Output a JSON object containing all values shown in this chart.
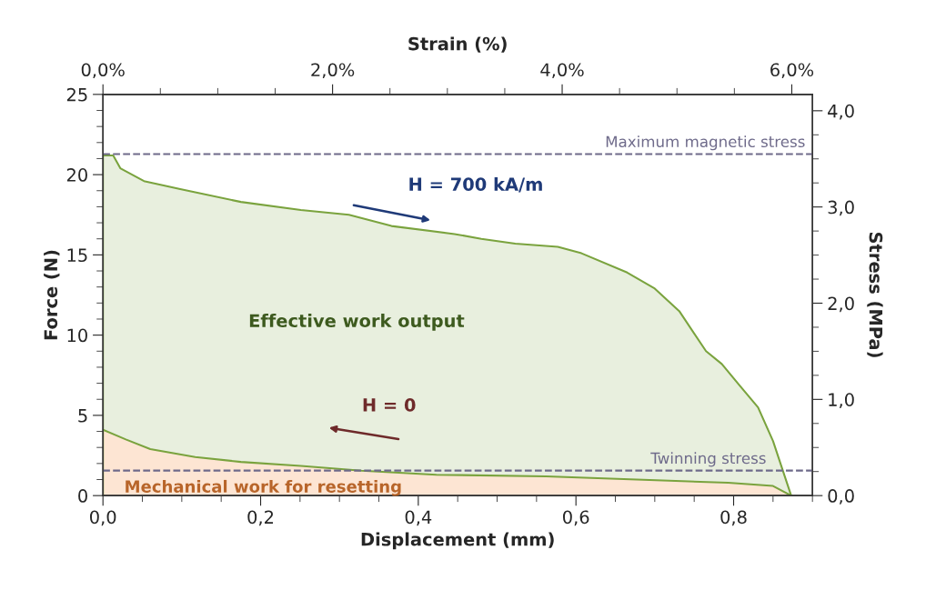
{
  "chart_data": {
    "type": "area",
    "xlabel": "Displacement (mm)",
    "ylabel": "Force (N)",
    "y2label": "Stress (MPa)",
    "x2label": "Strain (%)",
    "xlim": [
      0,
      0.9
    ],
    "xticks": [
      {
        "value": 0,
        "label": "0,0"
      },
      {
        "value": 0.2,
        "label": "0,2"
      },
      {
        "value": 0.4,
        "label": "0,4"
      },
      {
        "value": 0.6,
        "label": "0,6"
      },
      {
        "value": 0.8,
        "label": "0,8"
      }
    ],
    "ylim": [
      0,
      25
    ],
    "yticks": [
      0,
      5,
      10,
      15,
      20,
      25
    ],
    "y2lim": [
      0,
      4.17
    ],
    "y2ticks": [
      {
        "value": 0,
        "label": "0,0"
      },
      {
        "value": 1,
        "label": "1,0"
      },
      {
        "value": 2,
        "label": "2,0"
      },
      {
        "value": 3,
        "label": "3,0"
      },
      {
        "value": 4,
        "label": "4,0"
      }
    ],
    "x2lim": [
      0,
      6.18
    ],
    "x2ticks": [
      {
        "value": 0,
        "label": "0,0%"
      },
      {
        "value": 2,
        "label": "2,0%"
      },
      {
        "value": 4,
        "label": "4,0%"
      },
      {
        "value": 6,
        "label": "6,0%"
      }
    ],
    "series": [
      {
        "color": "#7aa33e",
        "x": [
          0,
          0,
          0.013,
          0.022,
          0.052,
          0.098,
          0.175,
          0.251,
          0.312,
          0.366,
          0.446,
          0.48,
          0.523,
          0.577,
          0.607,
          0.665,
          0.7,
          0.731,
          0.765,
          0.785,
          0.807,
          0.831,
          0.85,
          0.873
        ],
        "values": [
          0,
          21.2,
          21.2,
          20.4,
          19.6,
          19.1,
          18.3,
          17.8,
          17.5,
          16.8,
          16.3,
          16.0,
          15.7,
          15.5,
          15.1,
          13.9,
          12.9,
          11.5,
          9.0,
          8.2,
          6.9,
          5.5,
          3.4,
          0
        ]
      },
      {
        "color": "#fde5d3",
        "x": [
          0,
          0.029,
          0.06,
          0.117,
          0.175,
          0.251,
          0.328,
          0.423,
          0.562,
          0.677,
          0.793,
          0.85,
          0.873
        ],
        "values": [
          4.1,
          3.5,
          2.9,
          2.4,
          2.1,
          1.85,
          1.55,
          1.3,
          1.2,
          1.0,
          0.8,
          0.6,
          0
        ]
      }
    ],
    "ref_lines": [
      {
        "axis": "y2",
        "value": 3.55,
        "label": "Maximum magnetic stress",
        "color": "#6e6a8a",
        "line_style": "dashed"
      },
      {
        "axis": "y2",
        "value": 0.26,
        "label": "Twinning stress",
        "color": "#6e6a8a",
        "line_style": "dashed"
      }
    ],
    "annotations": [
      "Effective work output",
      "H = 700 kA/m",
      "H = 0",
      "Mechanical work for resetting"
    ]
  }
}
